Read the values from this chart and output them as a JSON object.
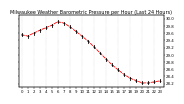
{
  "title": "Milwaukee Weather Barometric Pressure per Hour (Last 24 Hours)",
  "hours": [
    0,
    1,
    2,
    3,
    4,
    5,
    6,
    7,
    8,
    9,
    10,
    11,
    12,
    13,
    14,
    15,
    16,
    17,
    18,
    19,
    20,
    21,
    22,
    23
  ],
  "pressure": [
    29.56,
    29.52,
    29.6,
    29.68,
    29.75,
    29.82,
    29.92,
    29.88,
    29.78,
    29.65,
    29.52,
    29.38,
    29.22,
    29.05,
    28.88,
    28.72,
    28.58,
    28.45,
    28.35,
    28.28,
    28.22,
    28.22,
    28.25,
    28.28
  ],
  "line_color": "#ff0000",
  "marker_color": "#000000",
  "bg_color": "#ffffff",
  "grid_color": "#bbbbbb",
  "title_fontsize": 3.5,
  "tick_fontsize": 2.8,
  "ylim": [
    28.1,
    30.1
  ],
  "yticks": [
    28.2,
    28.4,
    28.6,
    28.8,
    29.0,
    29.2,
    29.4,
    29.6,
    29.8,
    30.0
  ],
  "show_left_yaxis": false
}
